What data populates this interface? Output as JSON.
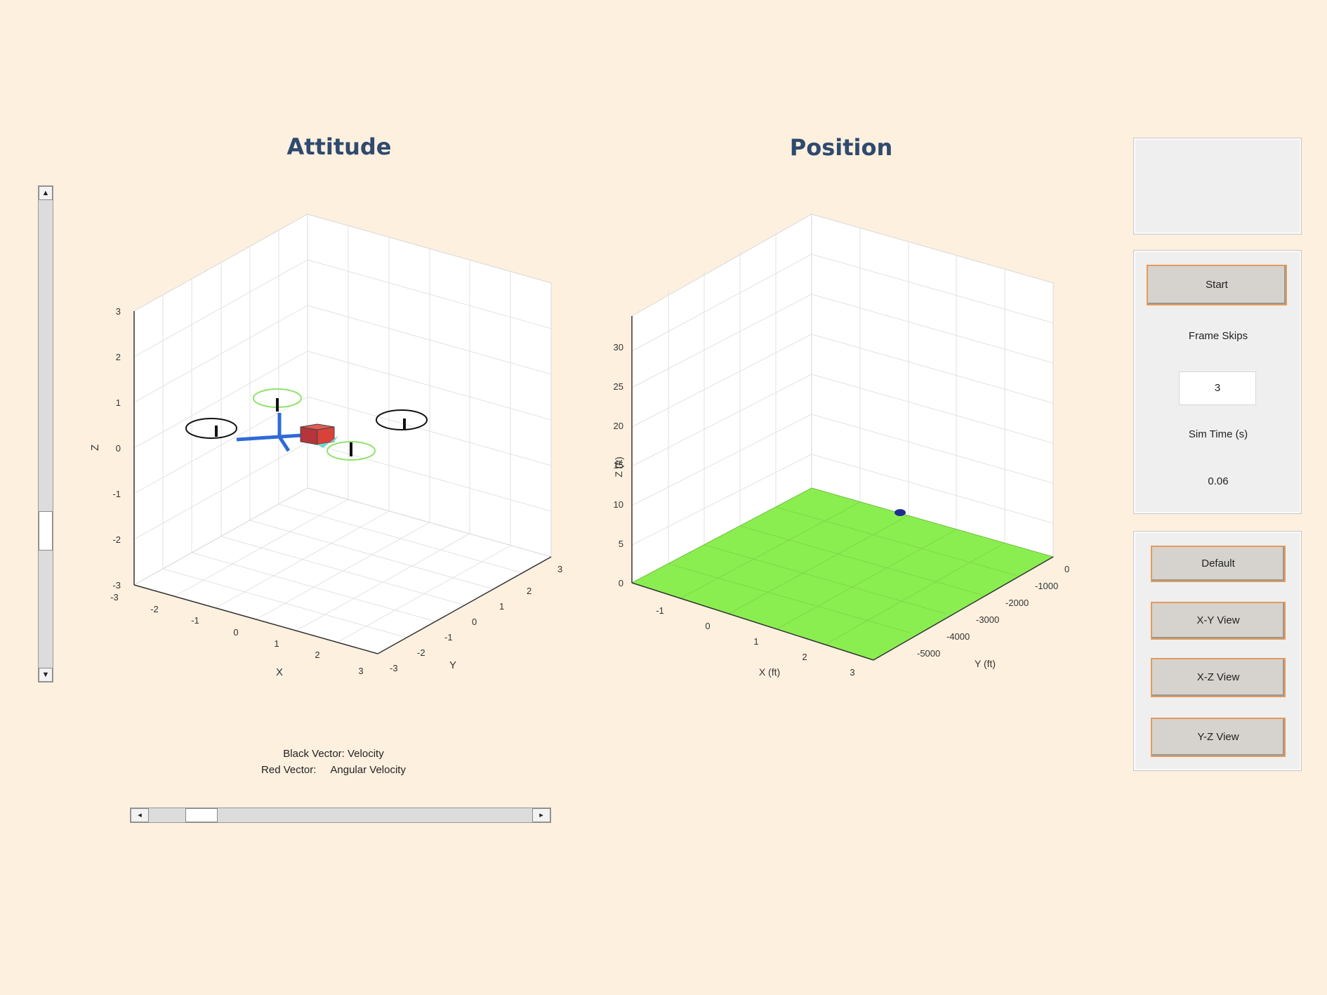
{
  "titles": {
    "attitude": "Attitude",
    "position": "Position"
  },
  "attitude_axes": {
    "xlabel": "X",
    "ylabel": "Y",
    "zlabel": "Z",
    "x_ticks": [
      "-3",
      "-2",
      "-1",
      "0",
      "1",
      "2",
      "3"
    ],
    "y_ticks": [
      "-3",
      "-2",
      "-1",
      "0",
      "1",
      "2",
      "3"
    ],
    "z_ticks": [
      "-3",
      "-2",
      "-1",
      "0",
      "1",
      "2",
      "3"
    ]
  },
  "position_axes": {
    "xlabel": "X (ft)",
    "ylabel": "Y (ft)",
    "zlabel": "Z (ft)",
    "x_ticks": [
      "-1",
      "0",
      "1",
      "2",
      "3"
    ],
    "y_ticks": [
      "0",
      "-1000",
      "-2000",
      "-3000",
      "-4000",
      "-5000"
    ],
    "z_ticks": [
      "0",
      "5",
      "10",
      "15",
      "20",
      "25",
      "30"
    ]
  },
  "legend": {
    "line1": "Black Vector: Velocity",
    "line2": "Red Vector:     Angular Velocity"
  },
  "controls": {
    "start_label": "Start",
    "frame_skips_label": "Frame Skips",
    "frame_skips_value": "3",
    "sim_time_label": "Sim Time (s)",
    "sim_time_value": "0.06"
  },
  "views": {
    "default_label": "Default",
    "xy_label": "X-Y View",
    "xz_label": "X-Z View",
    "yz_label": "Y-Z View"
  },
  "colors": {
    "background": "#fdf0df",
    "title": "#2f4a6e",
    "ground": "#8aee50",
    "body": "#d9413b",
    "arm": "#2f6bd6",
    "rotor_front": "#8fe36a",
    "marker": "#1f2f8f",
    "button_border": "#e39a5c"
  },
  "icons": {
    "up": "▲",
    "down": "▼",
    "left": "◂",
    "right": "▸"
  }
}
